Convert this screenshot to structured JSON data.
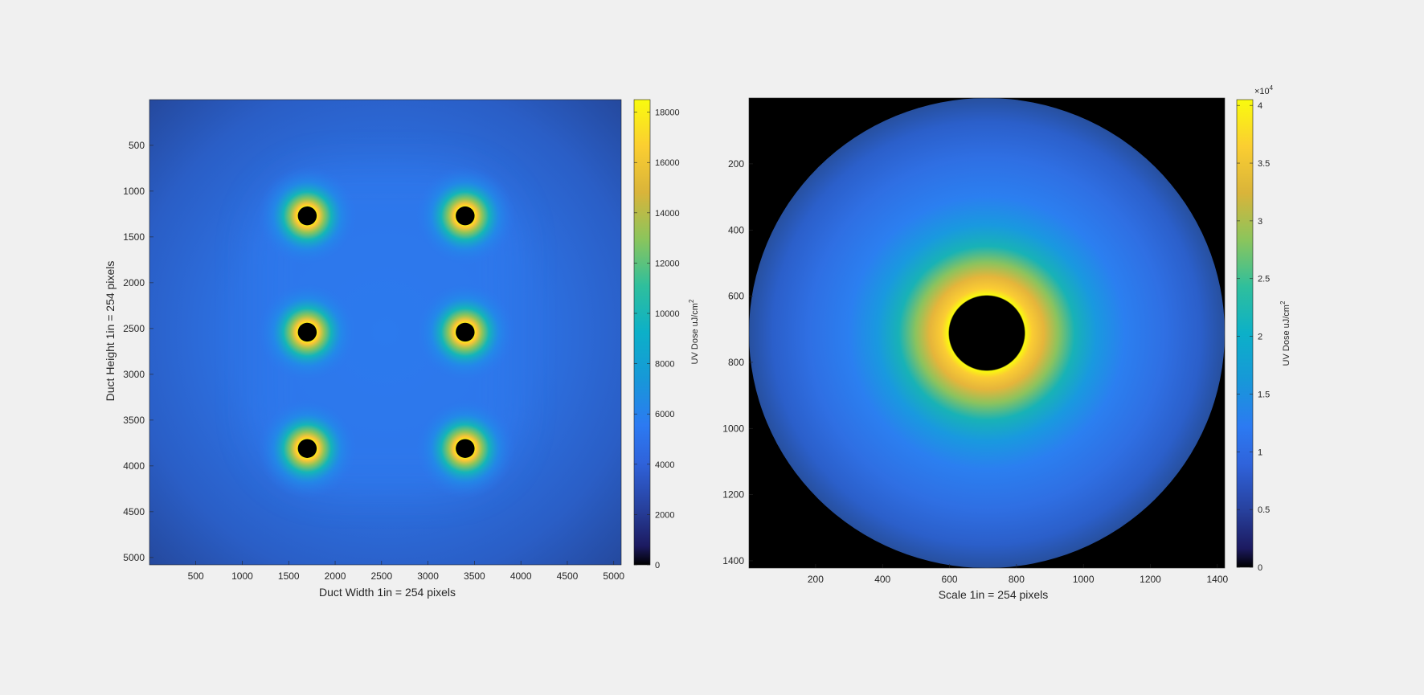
{
  "chart_data": [
    {
      "type": "heatmap",
      "title": "",
      "xlabel": "Duct Width 1in = 254 pixels",
      "ylabel": "Duct Height 1in = 254 pixels",
      "xlim": [
        1,
        5080
      ],
      "ylim": [
        1,
        5080
      ],
      "y_reversed": true,
      "x_ticks": [
        500,
        1000,
        1500,
        2000,
        2500,
        3000,
        3500,
        4000,
        4500,
        5000
      ],
      "y_ticks": [
        500,
        1000,
        1500,
        2000,
        2500,
        3000,
        3500,
        4000,
        4500,
        5000
      ],
      "lamp_centers": [
        [
          1700,
          1270
        ],
        [
          3400,
          1270
        ],
        [
          1700,
          2540
        ],
        [
          3400,
          2540
        ],
        [
          1700,
          3810
        ],
        [
          3400,
          3810
        ]
      ],
      "lamp_radius": 70,
      "colorbar": {
        "label_prefix": "UV Dose uJ/cm",
        "label_sup": "2",
        "min": 0,
        "max": 18500,
        "ticks": [
          0,
          2000,
          4000,
          6000,
          8000,
          10000,
          12000,
          14000,
          16000,
          18000
        ],
        "exponent": ""
      },
      "grid": false
    },
    {
      "type": "heatmap",
      "title": "",
      "xlabel": "Scale 1in = 254 pixels",
      "ylabel": "",
      "xlim": [
        1,
        1422
      ],
      "ylim": [
        1,
        1422
      ],
      "y_reversed": true,
      "x_ticks": [
        200,
        400,
        600,
        800,
        1000,
        1200,
        1400
      ],
      "y_ticks": [
        200,
        400,
        600,
        800,
        1000,
        1200,
        1400
      ],
      "lamp_centers": [
        [
          711,
          711
        ]
      ],
      "lamp_radius": 115,
      "outer_radius": 711,
      "colorbar": {
        "label_prefix": "UV Dose uJ/cm",
        "label_sup": "2",
        "min": 0,
        "max": 40500,
        "ticks": [
          0,
          5000,
          10000,
          15000,
          20000,
          25000,
          30000,
          35000,
          40000
        ],
        "tick_labels": [
          "0",
          "0.5",
          "1",
          "1.5",
          "2",
          "2.5",
          "3",
          "3.5",
          "4"
        ],
        "exponent_base": "×10",
        "exponent_power": "4"
      },
      "grid": false
    }
  ]
}
